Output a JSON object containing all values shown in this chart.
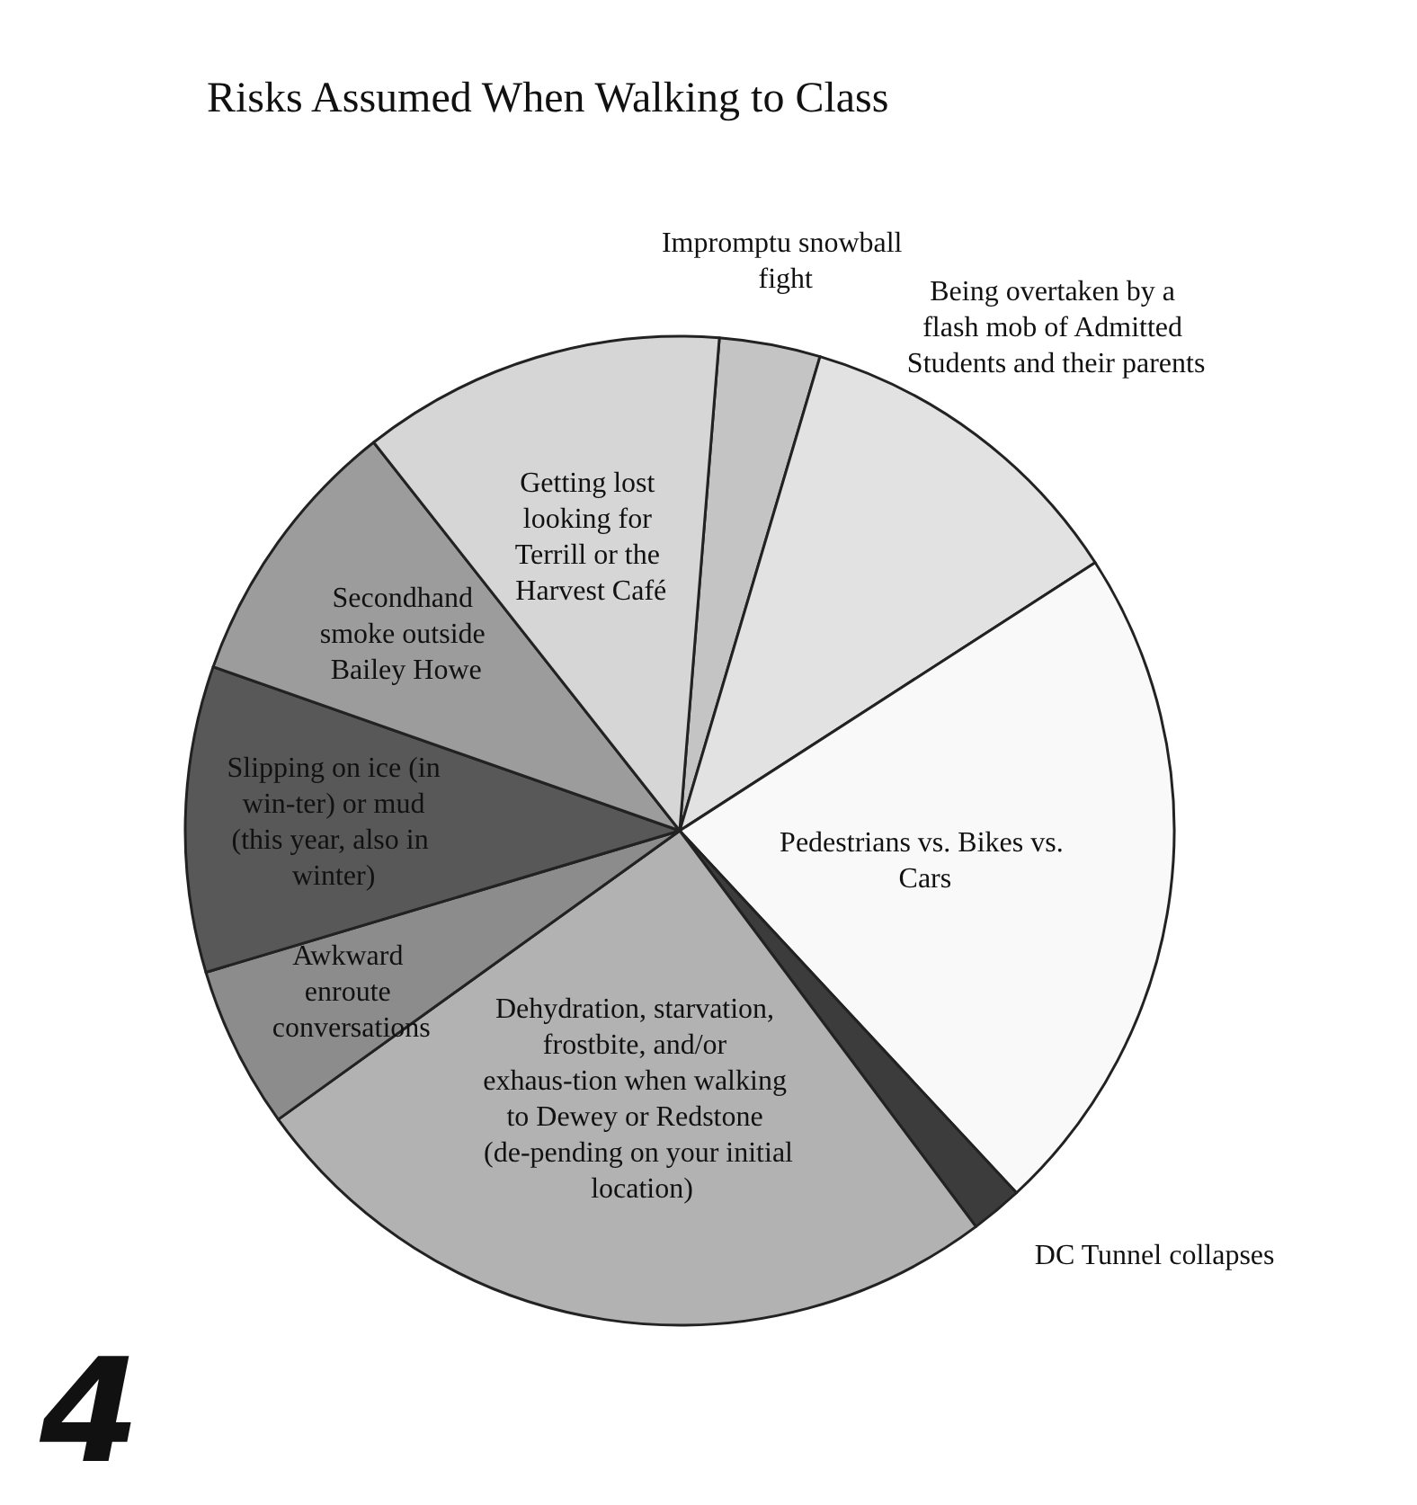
{
  "chart_data": {
    "type": "pie",
    "title": "Risks Assumed When Walking to Class",
    "categories": [
      "Impromptu snowball fight",
      "Being overtaken by a flash mob of Admitted Students and their parents",
      "Pedestrians vs. Bikes vs. Cars",
      "DC Tunnel collapses",
      "Dehydration, starvation, frostbite, and/or exhaus-tion when walking to Dewey or Redstone (de-pending on your initial location)",
      "Awkward enroute conversations",
      "Slipping on ice (in win-ter) or mud (this year, also in winter)",
      "Secondhand smoke outside Bailey Howe",
      "Getting lost looking for Terrill or the Harvest Café"
    ],
    "values": [
      3.3,
      11.3,
      22.2,
      1.7,
      25.3,
      5.3,
      10,
      9,
      11.9
    ],
    "colors": [
      "#c4c4c4",
      "#e2e2e2",
      "#f9f9f9",
      "#3c3c3c",
      "#b2b2b2",
      "#8c8c8c",
      "#585858",
      "#9c9c9c",
      "#d6d6d6"
    ],
    "annotations": [
      "4"
    ],
    "legend": false
  }
}
